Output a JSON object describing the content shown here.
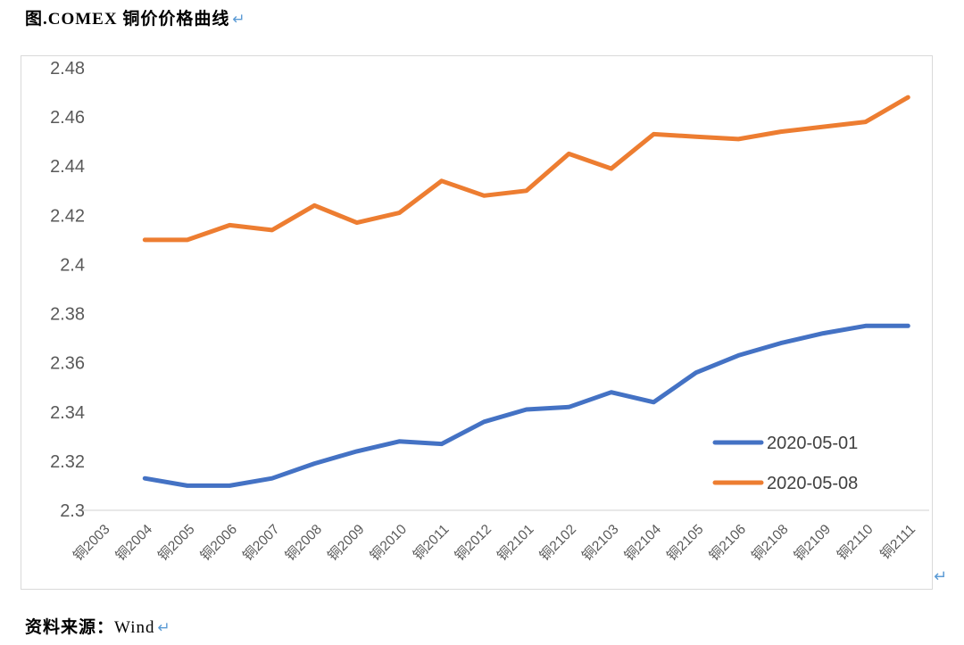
{
  "title": {
    "text": "图.COMEX 铜价价格曲线",
    "return_mark": "↵"
  },
  "chart": {
    "return_mark": "↵"
  },
  "footer": {
    "label": "资料来源：",
    "source": "Wind",
    "return_mark": "↵"
  },
  "colors": {
    "series_blue": "#4472C4",
    "series_orange": "#ED7D31",
    "axis_label": "#595959",
    "axis_line": "#D9D9D9",
    "frame_border": "#D9D9D9",
    "legend_text": "#404040",
    "return_mark": "#5B9BD5"
  },
  "chart_data": {
    "type": "line",
    "title": "图.COMEX 铜价价格曲线",
    "xlabel": "",
    "ylabel": "",
    "ylim": [
      2.3,
      2.48
    ],
    "ytick_step": 0.02,
    "ytick_labels": [
      "2.48",
      "2.46",
      "2.44",
      "2.42",
      "2.4",
      "2.38",
      "2.36",
      "2.34",
      "2.32",
      "2.3"
    ],
    "grid": false,
    "legend_position": "inside-right-bottom",
    "categories": [
      "铜2003",
      "铜2004",
      "铜2005",
      "铜2006",
      "铜2007",
      "铜2008",
      "铜2009",
      "铜2010",
      "铜2011",
      "铜2012",
      "铜2101",
      "铜2102",
      "铜2103",
      "铜2104",
      "铜2105",
      "铜2106",
      "铜2108",
      "铜2109",
      "铜2110",
      "铜2111"
    ],
    "series": [
      {
        "name": "2020-05-01",
        "color": "#4472C4",
        "values": [
          null,
          2.313,
          2.31,
          2.31,
          2.313,
          2.319,
          2.324,
          2.328,
          2.327,
          2.336,
          2.341,
          2.342,
          2.348,
          2.344,
          2.356,
          2.363,
          2.368,
          2.372,
          2.375,
          2.375
        ]
      },
      {
        "name": "2020-05-08",
        "color": "#ED7D31",
        "values": [
          null,
          2.41,
          2.41,
          2.416,
          2.414,
          2.424,
          2.417,
          2.421,
          2.434,
          2.428,
          2.43,
          2.445,
          2.439,
          2.453,
          2.452,
          2.451,
          2.454,
          2.456,
          2.458,
          2.468
        ]
      }
    ]
  }
}
